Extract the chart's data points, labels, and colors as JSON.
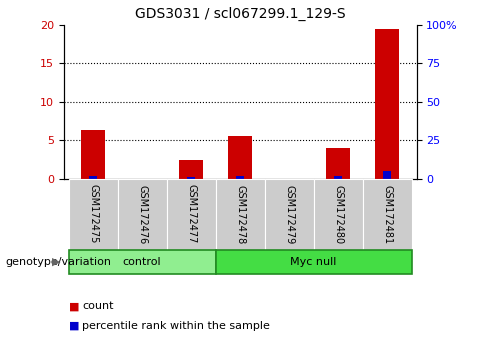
{
  "title": "GDS3031 / scl067299.1_129-S",
  "samples": [
    "GSM172475",
    "GSM172476",
    "GSM172477",
    "GSM172478",
    "GSM172479",
    "GSM172480",
    "GSM172481"
  ],
  "red_counts": [
    6.3,
    0,
    2.5,
    5.5,
    0,
    4.0,
    19.5
  ],
  "blue_counts": [
    2.0,
    0,
    1.0,
    2.0,
    0,
    1.5,
    5.0
  ],
  "ylim_left": [
    0,
    20
  ],
  "ylim_right": [
    0,
    100
  ],
  "yticks_left": [
    0,
    5,
    10,
    15,
    20
  ],
  "yticks_right": [
    0,
    25,
    50,
    75,
    100
  ],
  "ytick_labels_right": [
    "0",
    "25",
    "50",
    "75",
    "100%"
  ],
  "groups": [
    {
      "label": "control",
      "start": 0,
      "end": 3,
      "color": "#90EE90"
    },
    {
      "label": "Myc null",
      "start": 3,
      "end": 7,
      "color": "#44DD44"
    }
  ],
  "group_label": "genotype/variation",
  "bar_width": 0.5,
  "red_color": "#CC0000",
  "blue_color": "#0000CC",
  "grid_color": "black",
  "sample_area_color": "#CCCCCC",
  "legend_items": [
    "count",
    "percentile rank within the sample"
  ],
  "legend_colors": [
    "#CC0000",
    "#0000CC"
  ],
  "blue_bar_scale": 5.0
}
